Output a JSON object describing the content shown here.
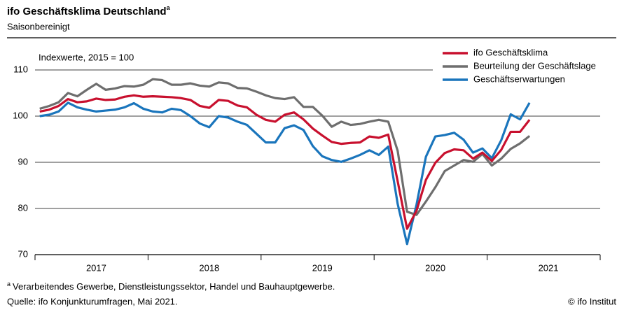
{
  "chart_data": {
    "type": "line",
    "title": "ifo Geschäftsklima Deutschland",
    "title_marker": "a",
    "subtitle": "Saisonbereinigt",
    "annotation": "Indexwerte, 2015 = 100",
    "footnote": "Verarbeitendes Gewerbe, Dienstleistungssektor, Handel und Bauhauptgewerbe.",
    "source": "Quelle: ifo Konjunkturumfragen, Mai 2021.",
    "copyright": "© ifo Institut",
    "categories": [
      null,
      null,
      null,
      null,
      null,
      null,
      "2017",
      null,
      null,
      null,
      null,
      null,
      null,
      null,
      null,
      null,
      null,
      null,
      "2018",
      null,
      null,
      null,
      null,
      null,
      null,
      null,
      null,
      null,
      null,
      null,
      "2019",
      null,
      null,
      null,
      null,
      null,
      null,
      null,
      null,
      null,
      null,
      null,
      "2020",
      null,
      null,
      null,
      null,
      null,
      null,
      null,
      null,
      null,
      null,
      null,
      "2021",
      null,
      null,
      null,
      null,
      null
    ],
    "ylim": [
      70,
      110
    ],
    "yticks": [
      70,
      80,
      90,
      100,
      110
    ],
    "grid": true,
    "legend": "top-right",
    "series": [
      {
        "name": "ifo Geschäftsklima",
        "color": "#c8102e",
        "values": [
          101.0,
          101.4,
          102.2,
          103.7,
          103.0,
          103.2,
          103.8,
          103.5,
          103.6,
          104.2,
          104.5,
          104.2,
          104.3,
          104.2,
          104.1,
          103.9,
          103.5,
          102.2,
          101.8,
          103.5,
          103.3,
          102.3,
          101.9,
          100.3,
          99.2,
          98.8,
          100.3,
          100.8,
          99.3,
          97.3,
          95.8,
          94.4,
          94.0,
          94.2,
          94.3,
          95.6,
          95.3,
          96.0,
          85.9,
          75.6,
          79.5,
          86.2,
          89.9,
          92.0,
          92.8,
          92.6,
          90.8,
          92.1,
          90.3,
          92.7,
          96.6,
          96.6,
          99.2,
          null,
          null,
          null,
          null,
          null,
          null,
          null
        ]
      },
      {
        "name": "Beurteilung der Geschäftslage",
        "color": "#6e6e6e",
        "values": [
          101.6,
          102.2,
          103.0,
          105.0,
          104.3,
          105.7,
          107.0,
          105.7,
          106.0,
          106.5,
          106.4,
          106.8,
          108.0,
          107.8,
          106.8,
          106.8,
          107.1,
          106.6,
          106.4,
          107.3,
          107.1,
          106.1,
          106.0,
          105.3,
          104.5,
          103.9,
          103.7,
          104.1,
          102.0,
          102.0,
          100.1,
          97.7,
          98.8,
          98.1,
          98.3,
          98.8,
          99.2,
          98.8,
          92.5,
          79.3,
          78.6,
          81.5,
          84.6,
          88.1,
          89.3,
          90.5,
          90.1,
          91.8,
          89.3,
          90.8,
          92.9,
          94.1,
          95.7,
          null,
          null,
          null,
          null,
          null,
          null,
          null
        ]
      },
      {
        "name": "Geschäftserwartungen",
        "color": "#1a75bc",
        "values": [
          100.0,
          100.3,
          101.0,
          102.9,
          101.9,
          101.4,
          101.0,
          101.2,
          101.4,
          101.9,
          102.8,
          101.6,
          101.0,
          100.8,
          101.6,
          101.3,
          100.0,
          98.4,
          97.6,
          100.0,
          99.7,
          98.8,
          98.1,
          96.2,
          94.3,
          94.3,
          97.4,
          98.0,
          97.0,
          93.5,
          91.3,
          90.5,
          90.1,
          90.8,
          91.6,
          92.6,
          91.6,
          93.4,
          81.0,
          72.3,
          80.8,
          91.2,
          95.6,
          95.9,
          96.4,
          94.9,
          92.1,
          93.0,
          90.9,
          94.8,
          100.4,
          99.3,
          102.9,
          null,
          null,
          null,
          null,
          null,
          null,
          null
        ]
      }
    ]
  }
}
